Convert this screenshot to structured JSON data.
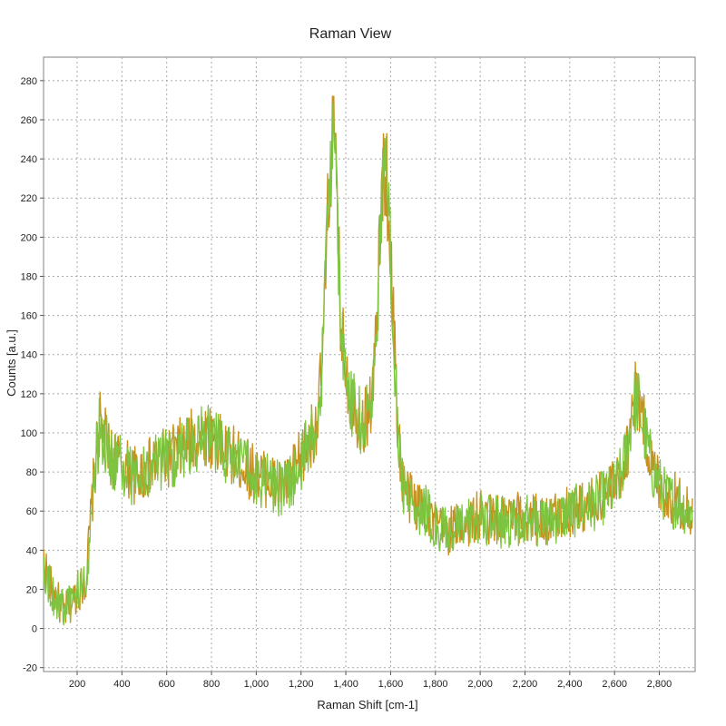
{
  "chart_data": {
    "type": "line",
    "title": "Raman View",
    "xlabel": "Raman Shift [cm-1]",
    "ylabel": "Counts [a.u.]",
    "xlim": [
      50,
      2960
    ],
    "ylim": [
      -22,
      292
    ],
    "x_ticks": [
      200,
      400,
      600,
      800,
      1000,
      1200,
      1400,
      1600,
      1800,
      2000,
      2200,
      2400,
      2600,
      2800
    ],
    "x_tick_labels": [
      "200",
      "400",
      "600",
      "800",
      "1,000",
      "1,200",
      "1,400",
      "1,600",
      "1,800",
      "2,000",
      "2,200",
      "2,400",
      "2,600",
      "2,800"
    ],
    "y_ticks": [
      -20,
      0,
      20,
      40,
      60,
      80,
      100,
      120,
      140,
      160,
      180,
      200,
      220,
      240,
      260,
      280
    ],
    "y_tick_labels": [
      "-20",
      "0",
      "20",
      "40",
      "60",
      "80",
      "100",
      "120",
      "140",
      "160",
      "180",
      "200",
      "220",
      "240",
      "260",
      "280"
    ],
    "grid": true,
    "legend": "none",
    "series": [
      {
        "color": "#c8901e",
        "x": [
          50,
          80,
          110,
          140,
          170,
          200,
          240,
          270,
          300,
          320,
          350,
          380,
          420,
          460,
          500,
          540,
          580,
          620,
          660,
          700,
          740,
          780,
          820,
          860,
          900,
          940,
          980,
          1020,
          1060,
          1100,
          1140,
          1180,
          1220,
          1260,
          1280,
          1300,
          1320,
          1340,
          1350,
          1360,
          1380,
          1400,
          1420,
          1450,
          1480,
          1500,
          1520,
          1540,
          1560,
          1575,
          1590,
          1610,
          1630,
          1650,
          1680,
          1720,
          1760,
          1800,
          1850,
          1900,
          1950,
          2000,
          2050,
          2100,
          2150,
          2200,
          2250,
          2300,
          2350,
          2400,
          2450,
          2500,
          2550,
          2600,
          2630,
          2660,
          2680,
          2700,
          2720,
          2740,
          2770,
          2800,
          2830,
          2860,
          2890,
          2920,
          2950
        ],
        "y": [
          35,
          22,
          15,
          8,
          12,
          18,
          25,
          70,
          105,
          98,
          88,
          86,
          82,
          78,
          80,
          84,
          86,
          88,
          92,
          95,
          98,
          100,
          96,
          90,
          88,
          84,
          80,
          78,
          76,
          72,
          74,
          82,
          92,
          102,
          112,
          150,
          210,
          255,
          245,
          215,
          150,
          135,
          118,
          110,
          105,
          112,
          120,
          160,
          220,
          240,
          215,
          165,
          110,
          75,
          68,
          63,
          62,
          52,
          50,
          52,
          55,
          57,
          56,
          55,
          56,
          57,
          56,
          55,
          58,
          60,
          62,
          64,
          68,
          72,
          80,
          95,
          115,
          120,
          110,
          98,
          82,
          75,
          68,
          66,
          65,
          62,
          60
        ]
      },
      {
        "color": "#7dc440",
        "x": [
          50,
          80,
          110,
          140,
          170,
          200,
          240,
          270,
          300,
          320,
          350,
          380,
          420,
          460,
          500,
          540,
          580,
          620,
          660,
          700,
          740,
          780,
          820,
          860,
          900,
          940,
          980,
          1020,
          1060,
          1100,
          1140,
          1180,
          1220,
          1260,
          1280,
          1300,
          1320,
          1340,
          1350,
          1360,
          1380,
          1400,
          1420,
          1450,
          1480,
          1500,
          1520,
          1540,
          1560,
          1575,
          1590,
          1610,
          1630,
          1650,
          1680,
          1720,
          1760,
          1800,
          1850,
          1900,
          1950,
          2000,
          2050,
          2100,
          2150,
          2200,
          2250,
          2300,
          2350,
          2400,
          2450,
          2500,
          2550,
          2600,
          2630,
          2660,
          2680,
          2700,
          2720,
          2740,
          2770,
          2800,
          2830,
          2860,
          2890,
          2920,
          2950
        ],
        "y": [
          33,
          20,
          14,
          10,
          13,
          19,
          24,
          68,
          103,
          97,
          87,
          85,
          80,
          77,
          79,
          83,
          85,
          87,
          91,
          94,
          97,
          99,
          95,
          89,
          87,
          83,
          79,
          77,
          75,
          71,
          73,
          81,
          91,
          101,
          110,
          148,
          208,
          258,
          248,
          218,
          148,
          133,
          117,
          109,
          104,
          111,
          119,
          158,
          218,
          243,
          218,
          163,
          108,
          74,
          67,
          62,
          61,
          51,
          49,
          51,
          54,
          56,
          55,
          54,
          55,
          56,
          55,
          54,
          57,
          59,
          61,
          63,
          67,
          71,
          79,
          93,
          113,
          118,
          108,
          97,
          81,
          74,
          67,
          65,
          64,
          61,
          59
        ]
      }
    ]
  }
}
